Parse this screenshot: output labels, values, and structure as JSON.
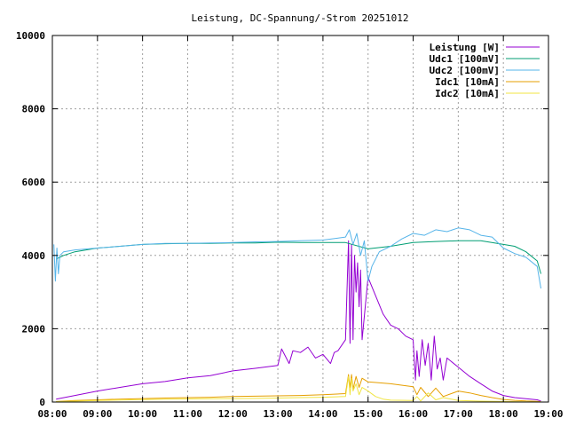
{
  "chart_data": {
    "type": "line",
    "title": "Leistung, DC-Spannung/-Strom 20251012",
    "xlabel": "",
    "ylabel": "",
    "x_ticks": [
      "08:00",
      "09:00",
      "10:00",
      "11:00",
      "12:00",
      "13:00",
      "14:00",
      "15:00",
      "16:00",
      "17:00",
      "18:00",
      "19:00"
    ],
    "y_ticks": [
      0,
      2000,
      4000,
      6000,
      8000,
      10000
    ],
    "xlim": [
      "08:00",
      "19:00"
    ],
    "ylim": [
      0,
      10000
    ],
    "grid": true,
    "legend_position": "top-right",
    "series": [
      {
        "name": "Leistung [W]",
        "color": "#9400d3",
        "x": [
          "08:05",
          "08:30",
          "09:00",
          "09:30",
          "10:00",
          "10:30",
          "11:00",
          "11:30",
          "12:00",
          "12:30",
          "13:00",
          "13:05",
          "13:15",
          "13:20",
          "13:30",
          "13:40",
          "13:50",
          "14:00",
          "14:10",
          "14:15",
          "14:20",
          "14:30",
          "14:34",
          "14:36",
          "14:38",
          "14:40",
          "14:42",
          "14:44",
          "14:46",
          "14:48",
          "14:50",
          "14:52",
          "15:00",
          "15:10",
          "15:20",
          "15:30",
          "15:40",
          "15:50",
          "16:00",
          "16:03",
          "16:05",
          "16:08",
          "16:12",
          "16:16",
          "16:20",
          "16:24",
          "16:28",
          "16:32",
          "16:36",
          "16:40",
          "16:45",
          "17:00",
          "17:15",
          "17:30",
          "17:45",
          "18:00",
          "18:15",
          "18:30",
          "18:45",
          "18:50"
        ],
        "values": [
          80,
          180,
          300,
          400,
          500,
          560,
          660,
          720,
          850,
          920,
          1000,
          1450,
          1050,
          1400,
          1350,
          1500,
          1200,
          1300,
          1050,
          1350,
          1400,
          1700,
          4400,
          1600,
          4300,
          1700,
          4000,
          3000,
          3800,
          2600,
          3600,
          1700,
          3400,
          2900,
          2400,
          2100,
          2000,
          1800,
          1700,
          600,
          1400,
          700,
          1700,
          1000,
          1600,
          600,
          1800,
          900,
          1200,
          600,
          1200,
          950,
          700,
          500,
          300,
          180,
          120,
          90,
          60,
          30
        ]
      },
      {
        "name": "Udc1 [100mV]",
        "color": "#009e73",
        "x": [
          "08:05",
          "08:15",
          "08:30",
          "09:00",
          "09:30",
          "10:00",
          "10:30",
          "11:00",
          "11:30",
          "12:00",
          "12:30",
          "13:00",
          "13:30",
          "14:00",
          "14:30",
          "15:00",
          "15:30",
          "16:00",
          "16:30",
          "17:00",
          "17:30",
          "18:00",
          "18:15",
          "18:30",
          "18:45",
          "18:50"
        ],
        "values": [
          3900,
          4000,
          4100,
          4200,
          4250,
          4300,
          4320,
          4330,
          4330,
          4340,
          4340,
          4360,
          4350,
          4350,
          4350,
          4180,
          4250,
          4350,
          4380,
          4400,
          4400,
          4300,
          4250,
          4100,
          3850,
          3500
        ]
      },
      {
        "name": "Udc2 [100mV]",
        "color": "#56b4e9",
        "x": [
          "08:02",
          "08:04",
          "08:06",
          "08:08",
          "08:10",
          "08:15",
          "08:30",
          "09:00",
          "09:30",
          "10:00",
          "10:30",
          "11:00",
          "11:30",
          "12:00",
          "12:30",
          "13:00",
          "13:30",
          "14:00",
          "14:30",
          "14:35",
          "14:40",
          "14:45",
          "14:50",
          "14:55",
          "15:00",
          "15:05",
          "15:15",
          "15:30",
          "15:45",
          "16:00",
          "16:15",
          "16:30",
          "16:45",
          "17:00",
          "17:15",
          "17:30",
          "17:45",
          "18:00",
          "18:15",
          "18:30",
          "18:45",
          "18:50"
        ],
        "values": [
          4300,
          3300,
          4200,
          3500,
          4000,
          4100,
          4150,
          4200,
          4250,
          4300,
          4330,
          4330,
          4340,
          4350,
          4370,
          4380,
          4400,
          4420,
          4500,
          4700,
          4300,
          4600,
          4000,
          4400,
          3300,
          3700,
          4100,
          4250,
          4450,
          4600,
          4550,
          4700,
          4650,
          4750,
          4700,
          4550,
          4500,
          4200,
          4050,
          3950,
          3700,
          3100
        ]
      },
      {
        "name": "Idc1 [10mA]",
        "color": "#e69f00",
        "x": [
          "08:05",
          "08:30",
          "09:00",
          "09:30",
          "10:00",
          "10:30",
          "11:00",
          "11:30",
          "12:00",
          "12:30",
          "13:00",
          "13:30",
          "14:00",
          "14:30",
          "14:34",
          "14:36",
          "14:38",
          "14:40",
          "14:44",
          "14:48",
          "14:52",
          "15:00",
          "15:30",
          "16:00",
          "16:05",
          "16:10",
          "16:20",
          "16:30",
          "16:40",
          "17:00",
          "17:15",
          "17:30",
          "17:45",
          "18:00",
          "18:15",
          "18:30",
          "18:45",
          "18:50"
        ],
        "values": [
          15,
          40,
          60,
          80,
          95,
          110,
          120,
          130,
          150,
          160,
          170,
          180,
          200,
          230,
          750,
          400,
          750,
          350,
          700,
          400,
          650,
          550,
          500,
          420,
          200,
          400,
          150,
          380,
          150,
          300,
          250,
          180,
          120,
          70,
          45,
          30,
          20,
          10
        ]
      },
      {
        "name": "Idc2 [10mA]",
        "color": "#f0e442",
        "x": [
          "08:05",
          "08:30",
          "09:00",
          "09:30",
          "10:00",
          "10:30",
          "11:00",
          "11:30",
          "12:00",
          "12:30",
          "13:00",
          "13:30",
          "14:00",
          "14:30",
          "14:34",
          "14:36",
          "14:38",
          "14:40",
          "14:44",
          "14:48",
          "14:52",
          "15:00",
          "15:10",
          "15:20",
          "15:30",
          "16:00",
          "16:05",
          "16:10",
          "16:20",
          "16:30",
          "16:40",
          "17:00",
          "17:30",
          "18:00",
          "18:30",
          "18:50"
        ],
        "values": [
          10,
          25,
          40,
          55,
          65,
          75,
          85,
          90,
          95,
          100,
          110,
          120,
          130,
          150,
          700,
          200,
          650,
          300,
          500,
          200,
          400,
          300,
          150,
          80,
          50,
          40,
          150,
          30,
          250,
          60,
          120,
          40,
          25,
          15,
          8,
          3
        ]
      }
    ]
  }
}
